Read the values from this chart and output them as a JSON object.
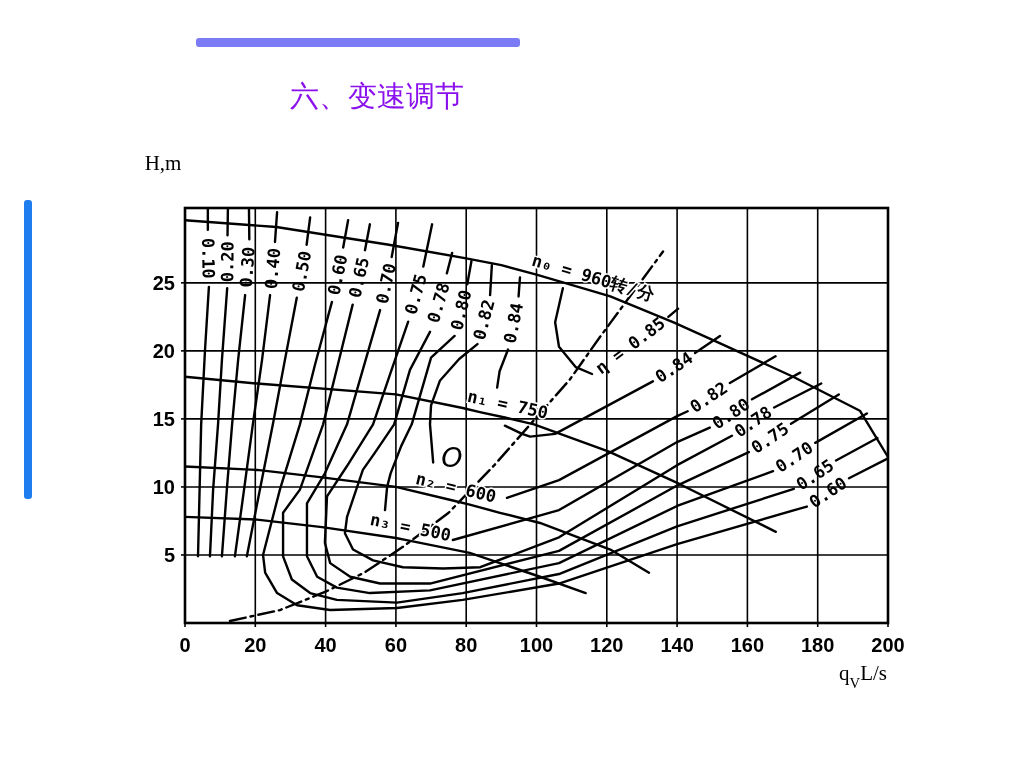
{
  "chart_data": {
    "type": "line",
    "title": "六、变速调节",
    "xlabel": "q$_{V}$L/s",
    "ylabel": "H,m",
    "xlim": [
      0,
      200
    ],
    "ylim": [
      0,
      30.5
    ],
    "xticks": [
      0,
      20,
      40,
      60,
      80,
      100,
      120,
      140,
      160,
      180,
      200
    ],
    "yticks": [
      5,
      10,
      15,
      20,
      25
    ],
    "grid": true,
    "line_style": "solid",
    "series": [
      {
        "color": "#000000",
        "x": [
          0,
          26,
          58,
          80,
          90,
          100,
          115,
          121,
          139,
          151,
          173,
          192,
          200
        ],
        "values": [
          29.6,
          29.1,
          27.8,
          26.8,
          26.3,
          25.6,
          24.46,
          24.0,
          22.1,
          20.7,
          18.1,
          15.6,
          12.2
        ]
      },
      {
        "color": "#000000",
        "x": [
          0,
          20.5,
          60,
          79,
          83.9,
          91,
          99.3,
          120.6,
          140.8,
          168.1
        ],
        "values": [
          18.1,
          17.6,
          16.8,
          15.8,
          15.5,
          15.1,
          14.6,
          12.6,
          10.2,
          6.7
        ]
      },
      {
        "color": "#000000",
        "x": [
          0,
          20.5,
          39,
          60,
          76.2,
          81,
          89.6,
          101,
          121,
          132
        ],
        "values": [
          11.5,
          11.25,
          10.7,
          10,
          9.0,
          8.7,
          8.1,
          7.35,
          5.4,
          3.7
        ]
      },
      {
        "color": "#000000",
        "x": [
          0,
          20.5,
          39,
          60,
          63.4,
          81,
          89.6,
          101,
          114
        ],
        "values": [
          7.8,
          7.6,
          7.05,
          6.25,
          6.07,
          5.15,
          4.4,
          3.4,
          2.2
        ]
      },
      {
        "color": "#000000",
        "line_style": "dashdot",
        "x": [
          12.8,
          27,
          40,
          51,
          62,
          75,
          88,
          109.5,
          118,
          136
        ],
        "values": [
          0.15,
          0.95,
          2.3,
          3.7,
          5.6,
          8.1,
          11.6,
          17.9,
          21.0,
          27.3
        ]
      },
      {
        "color": "#000000",
        "x": [
          6.5,
          6.5,
          null,
          6.8,
          5.7,
          4.6,
          3.7
        ],
        "values": [
          30.4,
          28.9,
          null,
          24.7,
          20.1,
          14.6,
          4.9
        ]
      },
      {
        "color": "#000000",
        "x": [
          12.2,
          12.1,
          null,
          12.0,
          10.5,
          9.4,
          8,
          7.1
        ],
        "values": [
          30.4,
          28.5,
          null,
          24.6,
          19.3,
          14.6,
          9.8,
          4.9
        ]
      },
      {
        "color": "#000000",
        "x": [
          18.2,
          18.3,
          null,
          17.1,
          15.1,
          13.4,
          11.9,
          10.5
        ],
        "values": [
          30.4,
          28.2,
          null,
          24.1,
          19.3,
          14.6,
          9.8,
          4.9
        ]
      },
      {
        "color": "#000000",
        "x": [
          26.2,
          25.6,
          null,
          24.2,
          21.9,
          19.3,
          16.8,
          14.2
        ],
        "values": [
          30.2,
          28,
          null,
          24.1,
          19.3,
          14.6,
          9.8,
          4.9
        ]
      },
      {
        "color": "#000000",
        "x": [
          35.6,
          34.6,
          null,
          31.8,
          28.4,
          25,
          21.3,
          17.6
        ],
        "values": [
          29.8,
          27.8,
          null,
          23.9,
          19.3,
          14.6,
          9.8,
          4.9
        ]
      },
      {
        "color": "#000000",
        "x": [
          46.4,
          45,
          null,
          41.8,
          37,
          32.7,
          27,
          22.2,
          22.8,
          26.2,
          31.9,
          41.3,
          60.3,
          79,
          106.4,
          140,
          176.9,
          null,
          188.9,
          200
        ],
        "values": [
          29.6,
          27.6,
          null,
          23.6,
          19,
          14.6,
          9.8,
          5.0,
          3.7,
          2.2,
          1.3,
          0.96,
          1.1,
          1.7,
          2.9,
          5.8,
          8.56,
          null,
          10.64,
          12.1
        ]
      },
      {
        "color": "#000000",
        "x": [
          52.6,
          51.2,
          null,
          47.7,
          43.5,
          39.3,
          32.7,
          27.9,
          27.9,
          30.4,
          35.6,
          43.2,
          60.3,
          79,
          106.4,
          140,
          173.2,
          null,
          185.2,
          197
        ],
        "values": [
          29.3,
          27.4,
          null,
          23.4,
          19,
          14.6,
          9.8,
          8.1,
          4.9,
          3.2,
          2.2,
          1.7,
          1.5,
          2.2,
          3.6,
          7.1,
          9.86,
          null,
          11.94,
          13.6
        ]
      },
      {
        "color": "#000000",
        "x": [
          60.6,
          58.8,
          null,
          55.5,
          50.8,
          46.1,
          39.8,
          34.7,
          34.7,
          37.6,
          43.2,
          52.6,
          69.7,
          106.4,
          140,
          167.3,
          null,
          179.3,
          194
        ],
        "values": [
          29.4,
          26.9,
          null,
          23,
          18.8,
          14.6,
          11,
          8.8,
          4.9,
          3.4,
          2.6,
          2.2,
          2.4,
          4.4,
          8.6,
          11.16,
          null,
          13.24,
          15.4
        ]
      },
      {
        "color": "#000000",
        "x": [
          70.3,
          67.8,
          null,
          63.5,
          58.5,
          53.5,
          46,
          40.4,
          39.8,
          41.3,
          47,
          55.5,
          69.7,
          106.4,
          140,
          160.4,
          null,
          172.4,
          186
        ],
        "values": [
          29.3,
          26.2,
          null,
          22.15,
          18.4,
          14.6,
          11.5,
          9.3,
          5.9,
          4.4,
          3.4,
          2.9,
          2.9,
          5.3,
          10.1,
          12.56,
          null,
          14.64,
          16.8
        ]
      },
      {
        "color": "#000000",
        "x": [
          76,
          74.5,
          null,
          69.7,
          64,
          59.5,
          54,
          50.6,
          46.1,
          45.5,
          47.8,
          53.5,
          62,
          73.4,
          84,
          106.4,
          140,
          155.6,
          null,
          167.6,
          181
        ],
        "values": [
          27.2,
          25.7,
          null,
          21.4,
          18.6,
          14.6,
          12.5,
          11.25,
          7.8,
          6.6,
          5.4,
          4.6,
          4.1,
          4.0,
          4.1,
          6.3,
          11.6,
          13.76,
          null,
          15.84,
          17.6
        ]
      },
      {
        "color": "#000000",
        "x": [
          81.5,
          80.3,
          null,
          76.7,
          70,
          64.5,
          61.5,
          58.5,
          57.5,
          56.9,
          null,
          76.2,
          106.4,
          140,
          149.3,
          null,
          161.3,
          175
        ],
        "values": [
          26.6,
          24.9,
          null,
          21.1,
          19.5,
          14.6,
          13,
          11,
          10,
          8.3,
          null,
          6.1,
          8.3,
          13.3,
          14.36,
          null,
          16.44,
          18.4
        ]
      },
      {
        "color": "#000000",
        "x": [
          87.3,
          86.8,
          null,
          83.2,
          78,
          72.5,
          70,
          69.7,
          70.6,
          null,
          91.6,
          106.4,
          140,
          143,
          null,
          155,
          168
        ],
        "values": [
          26.3,
          24.1,
          null,
          20.5,
          19.4,
          17.8,
          16,
          14.6,
          11.8,
          null,
          9.2,
          10.5,
          15.2,
          15.56,
          null,
          17.64,
          19.6
        ]
      },
      {
        "color": "#000000",
        "x": [
          95.3,
          94.9,
          null,
          91.9,
          89.5,
          88.8,
          null,
          91,
          95.9,
          98.2,
          105.3,
          133.1,
          null,
          145.1,
          152.2
        ],
        "values": [
          25.4,
          24,
          null,
          20.1,
          18.5,
          17.3,
          null,
          14.5,
          13.9,
          13.7,
          13.9,
          17.76,
          null,
          19.84,
          21.1
        ]
      },
      {
        "color": "#000000",
        "x": [
          107.5,
          105.3,
          106.4,
          111.2,
          115.8,
          null,
          137.5,
          140.3
        ],
        "values": [
          24.6,
          22.1,
          20.3,
          18.8,
          18.3,
          null,
          22.5,
          23.1
        ]
      }
    ],
    "annotations": [
      {
        "text": "n₀ = 960转/分",
        "x": 115,
        "y": 24.46
      },
      {
        "text": "n₁ = 750",
        "x": 91,
        "y": 15.1
      },
      {
        "text": "n₂ = 600",
        "x": 76.2,
        "y": 9.0
      },
      {
        "text": "n₃ = 500",
        "x": 63.4,
        "y": 6.07
      },
      {
        "text": "η = 0.85",
        "x": 115.8,
        "y": 18.3
      },
      "O",
      {
        "text": "0.10",
        "x": 6.5,
        "y": 28.9
      },
      {
        "text": "0.20",
        "x": 12.1,
        "y": 28.5
      },
      {
        "text": "0.30",
        "x": 18.3,
        "y": 28.2
      },
      {
        "text": "0.40",
        "x": 25.6,
        "y": 28
      },
      {
        "text": "0.50",
        "x": 34.6,
        "y": 27.8
      },
      {
        "text": "0.60",
        "x": 45,
        "y": 27.6
      },
      {
        "text": "0.65",
        "x": 51.2,
        "y": 27.4
      },
      {
        "text": "0.70",
        "x": 58.8,
        "y": 26.9
      },
      {
        "text": "0.75",
        "x": 67.8,
        "y": 26.2
      },
      {
        "text": "0.78",
        "x": 74.5,
        "y": 25.7
      },
      {
        "text": "0.80",
        "x": 80.3,
        "y": 24.9
      },
      {
        "text": "0.82",
        "x": 86.8,
        "y": 24.1
      },
      {
        "text": "0.84",
        "x": 94.9,
        "y": 24
      },
      {
        "text": "0.84",
        "x": 133.1,
        "y": 17.76
      },
      {
        "text": "0.82",
        "x": 143,
        "y": 15.56
      },
      {
        "text": "0.80",
        "x": 149.3,
        "y": 14.36
      },
      {
        "text": "0.78",
        "x": 155.6,
        "y": 13.76
      },
      {
        "text": "0.75",
        "x": 160.4,
        "y": 12.56
      },
      {
        "text": "0.70",
        "x": 167.3,
        "y": 11.16
      },
      {
        "text": "0.65",
        "x": 173.2,
        "y": 9.86
      },
      {
        "text": "0.60",
        "x": 176.9,
        "y": 8.56
      }
    ]
  }
}
